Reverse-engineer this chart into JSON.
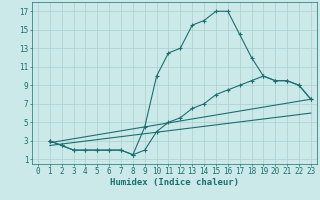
{
  "xlabel": "Humidex (Indice chaleur)",
  "background_color": "#cce9e9",
  "grid_color": "#aacfcf",
  "line_color": "#1a7070",
  "xlim": [
    -0.5,
    23.5
  ],
  "ylim": [
    0.5,
    18.0
  ],
  "xticks": [
    0,
    1,
    2,
    3,
    4,
    5,
    6,
    7,
    8,
    9,
    10,
    11,
    12,
    13,
    14,
    15,
    16,
    17,
    18,
    19,
    20,
    21,
    22,
    23
  ],
  "yticks": [
    1,
    3,
    5,
    7,
    9,
    11,
    13,
    15,
    17
  ],
  "series1_x": [
    1,
    2,
    3,
    4,
    5,
    6,
    7,
    8,
    9,
    10,
    11,
    12,
    13,
    14,
    15,
    16,
    17,
    18,
    19,
    20,
    21,
    22,
    23
  ],
  "series1_y": [
    3.0,
    2.5,
    2.0,
    2.0,
    2.0,
    2.0,
    2.0,
    1.5,
    4.5,
    10.0,
    12.5,
    13.0,
    15.5,
    16.0,
    17.0,
    17.0,
    14.5,
    12.0,
    10.0,
    9.5,
    9.5,
    9.0,
    7.5
  ],
  "series2_x": [
    1,
    2,
    3,
    4,
    5,
    6,
    7,
    8,
    9,
    10,
    11,
    12,
    13,
    14,
    15,
    16,
    17,
    18,
    19,
    20,
    21,
    22,
    23
  ],
  "series2_y": [
    3.0,
    2.5,
    2.0,
    2.0,
    2.0,
    2.0,
    2.0,
    1.5,
    2.0,
    4.0,
    5.0,
    5.5,
    6.5,
    7.0,
    8.0,
    8.5,
    9.0,
    9.5,
    10.0,
    9.5,
    9.5,
    9.0,
    7.5
  ],
  "series3_x": [
    1,
    23
  ],
  "series3_y": [
    2.8,
    7.5
  ],
  "series4_x": [
    1,
    23
  ],
  "series4_y": [
    2.5,
    6.0
  ]
}
